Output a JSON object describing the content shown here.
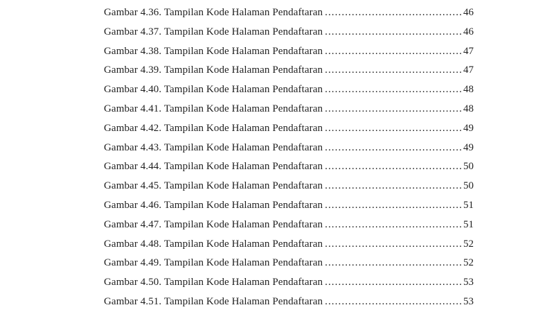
{
  "page": {
    "background_color": "#ffffff",
    "text_color": "#1f1f1f"
  },
  "toc": {
    "rows": [
      {
        "label": "Gambar 4.36. Tampilan Kode Halaman Pendaftaran",
        "page": "46"
      },
      {
        "label": "Gambar 4.37. Tampilan Kode Halaman Pendaftaran",
        "page": "46"
      },
      {
        "label": "Gambar 4.38. Tampilan Kode Halaman Pendaftaran",
        "page": "47"
      },
      {
        "label": "Gambar 4.39. Tampilan Kode Halaman Pendaftaran",
        "page": "47"
      },
      {
        "label": "Gambar 4.40. Tampilan Kode Halaman Pendaftaran",
        "page": "48"
      },
      {
        "label": "Gambar 4.41. Tampilan Kode Halaman Pendaftaran",
        "page": "48"
      },
      {
        "label": "Gambar 4.42. Tampilan Kode Halaman Pendaftaran",
        "page": "49"
      },
      {
        "label": "Gambar 4.43. Tampilan Kode Halaman Pendaftaran",
        "page": "49"
      },
      {
        "label": "Gambar 4.44. Tampilan Kode Halaman Pendaftaran",
        "page": "50"
      },
      {
        "label": "Gambar 4.45. Tampilan Kode Halaman Pendaftaran",
        "page": "50"
      },
      {
        "label": "Gambar 4.46. Tampilan Kode Halaman Pendaftaran",
        "page": "51"
      },
      {
        "label": "Gambar 4.47. Tampilan Kode Halaman Pendaftaran",
        "page": "51"
      },
      {
        "label": "Gambar 4.48. Tampilan Kode Halaman Pendaftaran",
        "page": "52"
      },
      {
        "label": "Gambar 4.49. Tampilan Kode Halaman Pendaftaran",
        "page": "52"
      },
      {
        "label": "Gambar 4.50. Tampilan Kode Halaman Pendaftaran",
        "page": "53"
      },
      {
        "label": "Gambar 4.51. Tampilan Kode Halaman Pendaftaran",
        "page": "53"
      }
    ]
  }
}
